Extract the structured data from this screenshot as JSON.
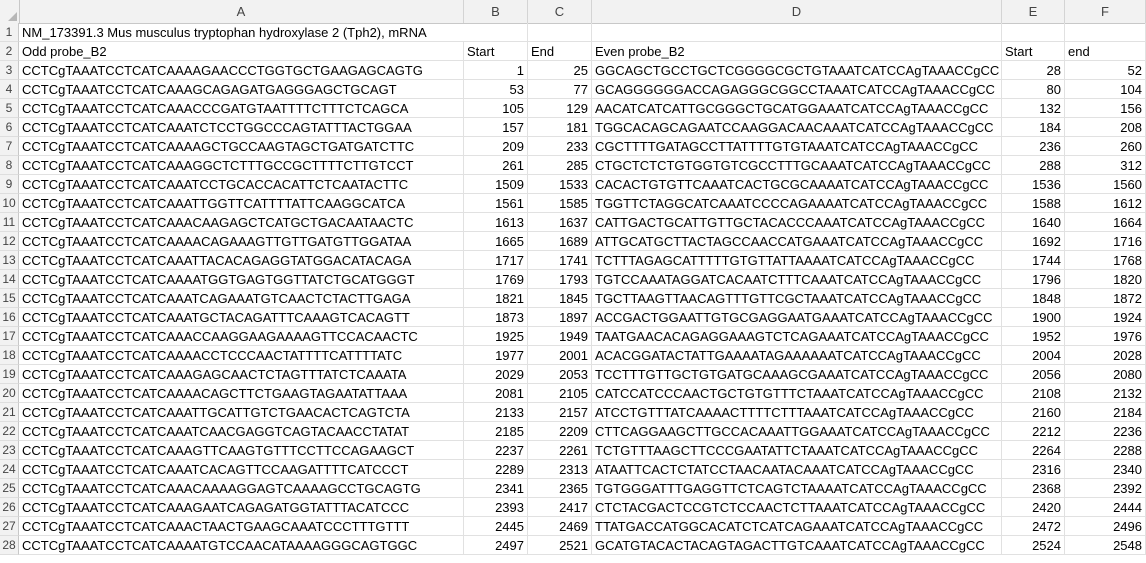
{
  "columns": [
    "A",
    "B",
    "C",
    "D",
    "E",
    "F"
  ],
  "title": "NM_173391.3 Mus musculus tryptophan hydroxylase 2 (Tph2), mRNA",
  "headers": {
    "odd": "Odd probe_B2",
    "start1": "Start",
    "end1": "End",
    "even": "Even probe_B2",
    "start2": "Start",
    "end2": "end"
  },
  "rows": [
    {
      "n": "3",
      "odd": "CCTCgTAAATCCTCATCAAAAGAACCCTGGTGCTGAAGAGCAGTG",
      "s1": "1",
      "e1": "25",
      "even": "GGCAGCTGCCTGCTCGGGGCGCTGTAAATCATCCAgTAAACCgCC",
      "s2": "28",
      "e2": "52"
    },
    {
      "n": "4",
      "odd": "CCTCgTAAATCCTCATCAAAGCAGAGATGAGGGAGCTGCAGT",
      "s1": "53",
      "e1": "77",
      "even": "GCAGGGGGGACCAGAGGGCGGCCTAAATCATCCAgTAAACCgCC",
      "s2": "80",
      "e2": "104"
    },
    {
      "n": "5",
      "odd": "CCTCgTAAATCCTCATCAAACCCGATGTAATTTTCTTTCTCAGCA",
      "s1": "105",
      "e1": "129",
      "even": "AACATCATCATTGCGGGCTGCATGGAAATCATCCAgTAAACCgCC",
      "s2": "132",
      "e2": "156"
    },
    {
      "n": "6",
      "odd": "CCTCgTAAATCCTCATCAAATCTCCTGGCCCAGTATTTACTGGAA",
      "s1": "157",
      "e1": "181",
      "even": "TGGCACAGCAGAATCCAAGGACAACAAATCATCCAgTAAACCgCC",
      "s2": "184",
      "e2": "208"
    },
    {
      "n": "7",
      "odd": "CCTCgTAAATCCTCATCAAAAGCTGCCAAGTAGCTGATGATCTTC",
      "s1": "209",
      "e1": "233",
      "even": "CGCTTTTGATAGCCTTATTTTGTGTAAATCATCCAgTAAACCgCC",
      "s2": "236",
      "e2": "260"
    },
    {
      "n": "8",
      "odd": "CCTCgTAAATCCTCATCAAAGGCTCTTTGCCGCTTTTCTTGTCCT",
      "s1": "261",
      "e1": "285",
      "even": "CTGCTCTCTGTGGTGTCGCCTTTGCAAATCATCCAgTAAACCgCC",
      "s2": "288",
      "e2": "312"
    },
    {
      "n": "9",
      "odd": "CCTCgTAAATCCTCATCAAATCCTGCACCACATTCTCAATACTTC",
      "s1": "1509",
      "e1": "1533",
      "even": "CACACTGTGTTCAAATCACTGCGCAAAATCATCCAgTAAACCgCC",
      "s2": "1536",
      "e2": "1560"
    },
    {
      "n": "10",
      "odd": "CCTCgTAAATCCTCATCAAATTGGTTCATTTTATTCAAGGCATCA",
      "s1": "1561",
      "e1": "1585",
      "even": "TGGTTCTAGGCATCAAATCCCCAGAAAATCATCCAgTAAACCgCC",
      "s2": "1588",
      "e2": "1612"
    },
    {
      "n": "11",
      "odd": "CCTCgTAAATCCTCATCAAACAAGAGCTCATGCTGACAATAACTC",
      "s1": "1613",
      "e1": "1637",
      "even": "CATTGACTGCATTGTTGCTACACCCAAATCATCCAgTAAACCgCC",
      "s2": "1640",
      "e2": "1664"
    },
    {
      "n": "12",
      "odd": "CCTCgTAAATCCTCATCAAAACAGAAAGTTGTTGATGTTGGATAA",
      "s1": "1665",
      "e1": "1689",
      "even": "ATTGCATGCTTACTAGCCAACCATGAAATCATCCAgTAAACCgCC",
      "s2": "1692",
      "e2": "1716"
    },
    {
      "n": "13",
      "odd": "CCTCgTAAATCCTCATCAAATTACACAGAGGTATGGACATACAGA",
      "s1": "1717",
      "e1": "1741",
      "even": "TCTTTAGAGCATTTTTGTGTTATTAAAATCATCCAgTAAACCgCC",
      "s2": "1744",
      "e2": "1768"
    },
    {
      "n": "14",
      "odd": "CCTCgTAAATCCTCATCAAAATGGTGAGTGGTTATCTGCATGGGT",
      "s1": "1769",
      "e1": "1793",
      "even": "TGTCCAAATAGGATCACAATCTTTCAAATCATCCAgTAAACCgCC",
      "s2": "1796",
      "e2": "1820"
    },
    {
      "n": "15",
      "odd": "CCTCgTAAATCCTCATCAAATCAGAAATGTCAACTCTACTTGAGA",
      "s1": "1821",
      "e1": "1845",
      "even": "TGCTTAAGTTAACAGTTTGTTCGCTAAATCATCCAgTAAACCgCC",
      "s2": "1848",
      "e2": "1872"
    },
    {
      "n": "16",
      "odd": "CCTCgTAAATCCTCATCAAATGCTACAGATTTCAAAGTCACAGTT",
      "s1": "1873",
      "e1": "1897",
      "even": "ACCGACTGGAATTGTGCGAGGAATGAAATCATCCAgTAAACCgCC",
      "s2": "1900",
      "e2": "1924"
    },
    {
      "n": "17",
      "odd": "CCTCgTAAATCCTCATCAAACCAAGGAAGAAAAGTTCCACAACTC",
      "s1": "1925",
      "e1": "1949",
      "even": "TAATGAACACAGAGGAAAGTCTCAGAAATCATCCAgTAAACCgCC",
      "s2": "1952",
      "e2": "1976"
    },
    {
      "n": "18",
      "odd": "CCTCgTAAATCCTCATCAAAACCTCCCAACTATTTTCATTTTATC",
      "s1": "1977",
      "e1": "2001",
      "even": "ACACGGATACTATTGAAAATAGAAAAAATCATCCAgTAAACCgCC",
      "s2": "2004",
      "e2": "2028"
    },
    {
      "n": "19",
      "odd": "CCTCgTAAATCCTCATCAAAGAGCAACTCTAGTTTATCTCAAATA",
      "s1": "2029",
      "e1": "2053",
      "even": "TCCTTTGTTGCTGTGATGCAAAGCGAAATCATCCAgTAAACCgCC",
      "s2": "2056",
      "e2": "2080"
    },
    {
      "n": "20",
      "odd": "CCTCgTAAATCCTCATCAAAACAGCTTCTGAAGTAGAATATTAAA",
      "s1": "2081",
      "e1": "2105",
      "even": "CATCCATCCCAACTGCTGTGTTTCTAAATCATCCAgTAAACCgCC",
      "s2": "2108",
      "e2": "2132"
    },
    {
      "n": "21",
      "odd": "CCTCgTAAATCCTCATCAAATTGCATTGTCTGAACACTCAGTCTA",
      "s1": "2133",
      "e1": "2157",
      "even": "ATCCTGTTTATCAAAACTTTTCTTTAAATCATCCAgTAAACCgCC",
      "s2": "2160",
      "e2": "2184"
    },
    {
      "n": "22",
      "odd": "CCTCgTAAATCCTCATCAAATCAACGAGGTCAGTACAACCTATAT",
      "s1": "2185",
      "e1": "2209",
      "even": "CTTCAGGAAGCTTGCCACAAATTGGAAATCATCCAgTAAACCgCC",
      "s2": "2212",
      "e2": "2236"
    },
    {
      "n": "23",
      "odd": "CCTCgTAAATCCTCATCAAAGTTCAAGTGTTTCCTTCCAGAAGCT",
      "s1": "2237",
      "e1": "2261",
      "even": "TCTGTTTAAGCTTCCCGAATATTCTAAATCATCCAgTAAACCgCC",
      "s2": "2264",
      "e2": "2288"
    },
    {
      "n": "24",
      "odd": "CCTCgTAAATCCTCATCAAATCACAGTTCCAAGATTTTCATCCCT",
      "s1": "2289",
      "e1": "2313",
      "even": "ATAATTCACTCTATCCTAACAATACAAATCATCCAgTAAACCgCC",
      "s2": "2316",
      "e2": "2340"
    },
    {
      "n": "25",
      "odd": "CCTCgTAAATCCTCATCAAACAAAAGGAGTCAAAAGCCTGCAGTG",
      "s1": "2341",
      "e1": "2365",
      "even": "TGTGGGATTTGAGGTTCTCAGTCTAAAATCATCCAgTAAACCgCC",
      "s2": "2368",
      "e2": "2392"
    },
    {
      "n": "26",
      "odd": "CCTCgTAAATCCTCATCAAAGAATCAGAGATGGTATTTACATCCC",
      "s1": "2393",
      "e1": "2417",
      "even": "CTCTACGACTCCGTCTCCAACTCTTAAATCATCCAgTAAACCgCC",
      "s2": "2420",
      "e2": "2444"
    },
    {
      "n": "27",
      "odd": "CCTCgTAAATCCTCATCAAACTAACTGAAGCAAATCCCTTTGTTT",
      "s1": "2445",
      "e1": "2469",
      "even": "TTATGACCATGGCACATCTCATCAGAAATCATCCAgTAAACCgCC",
      "s2": "2472",
      "e2": "2496"
    },
    {
      "n": "28",
      "odd": "CCTCgTAAATCCTCATCAAAATGTCCAACATAAAAGGGCAGTGGC",
      "s1": "2497",
      "e1": "2521",
      "even": "GCATGTACACTACAGTAGACTTGTCAAATCATCCAgTAAACCgCC",
      "s2": "2524",
      "e2": "2548"
    }
  ]
}
